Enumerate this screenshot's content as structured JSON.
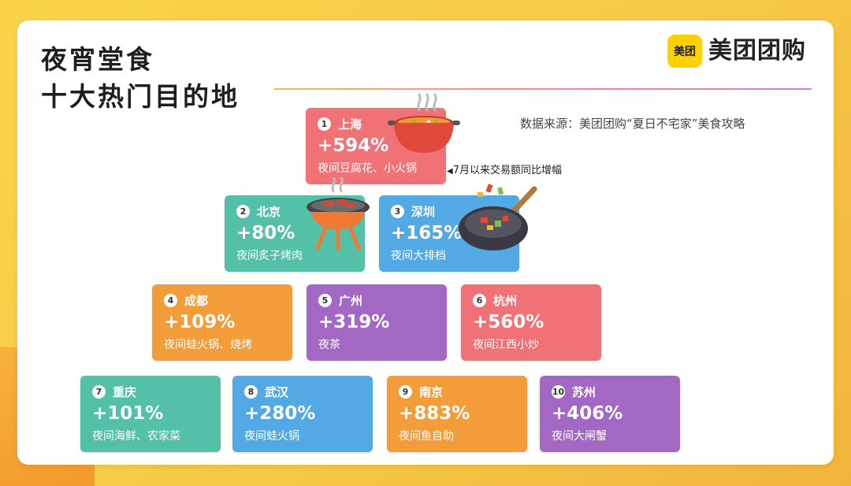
{
  "header": {
    "title_line1": "夜宵堂食",
    "title_line2": "十大热门目的地",
    "logo_badge": "美团",
    "logo_text": "美团团购"
  },
  "source": "数据来源：美团团购“夏日不宅家”美食攻略",
  "note": "7月以来交易额同比增幅",
  "note_arrow": "◀",
  "destinations": [
    {
      "rank": "1",
      "city": "上海",
      "growth": "+594%",
      "desc": "夜间豆腐花、小火锅",
      "color": "#f07276"
    },
    {
      "rank": "2",
      "city": "北京",
      "growth": "+80%",
      "desc": "夜间炙子烤肉",
      "color": "#55c0a8"
    },
    {
      "rank": "3",
      "city": "深圳",
      "growth": "+165%",
      "desc": "夜间大排档",
      "color": "#52a9e3"
    },
    {
      "rank": "4",
      "city": "成都",
      "growth": "+109%",
      "desc": "夜间蛙火锅、烧烤",
      "color": "#f29c3a"
    },
    {
      "rank": "5",
      "city": "广州",
      "growth": "+319%",
      "desc": "夜茶",
      "color": "#a367c4"
    },
    {
      "rank": "6",
      "city": "杭州",
      "growth": "+560%",
      "desc": "夜间江西小炒",
      "color": "#f07276"
    },
    {
      "rank": "7",
      "city": "重庆",
      "growth": "+101%",
      "desc": "夜间海鲜、农家菜",
      "color": "#55c0a8"
    },
    {
      "rank": "8",
      "city": "武汉",
      "growth": "+280%",
      "desc": "夜间蛙火锅",
      "color": "#52a9e3"
    },
    {
      "rank": "9",
      "city": "南京",
      "growth": "+883%",
      "desc": "夜间鱼自助",
      "color": "#f29c3a"
    },
    {
      "rank": "10",
      "city": "苏州",
      "growth": "+406%",
      "desc": "夜间大闸蟹",
      "color": "#a367c4"
    }
  ],
  "icons": [
    "hotpot-icon",
    "grill-icon",
    "wok-icon"
  ]
}
